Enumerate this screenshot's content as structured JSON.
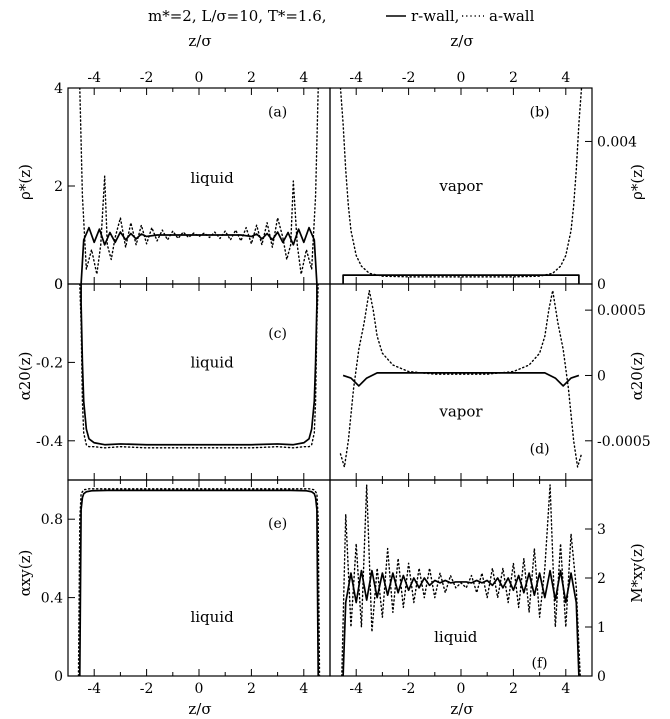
{
  "figure": {
    "header": {
      "params": "m*=2,  L/σ=10,  T*=1.6,",
      "solid_legend": "r-wall,",
      "dotted_legend": "a-wall"
    },
    "axes": {
      "top_xlabel": "z/σ",
      "bottom_xlabel": "z/σ",
      "ylabel_rho": "ρ*(z)",
      "ylabel_alpha20": "α20(z)",
      "ylabel_alphaxy": "αxy(z)",
      "ylabel_Mxy": "M*xy(z)"
    }
  },
  "chart_data": [
    {
      "type": "line",
      "panel": "(a)",
      "region": "liquid",
      "xlim": [
        -5,
        5
      ],
      "ylim": [
        0,
        4
      ],
      "xticks": [
        "-4",
        "-2",
        "0",
        "2",
        "4"
      ],
      "yticks": [
        "0",
        "2",
        "4"
      ],
      "series": [
        {
          "name": "r-wall",
          "style": "solid",
          "x": [
            -4.5,
            -4.4,
            -4.2,
            -4.0,
            -3.8,
            -3.6,
            -3.4,
            -3.2,
            -3.0,
            -2.8,
            -2.6,
            -2.4,
            -2.2,
            -2.0,
            -1.6,
            -1.2,
            -0.8,
            -0.4,
            0.0,
            0.4,
            0.8,
            1.2,
            1.6,
            2.0,
            2.2,
            2.4,
            2.6,
            2.8,
            3.0,
            3.2,
            3.4,
            3.6,
            3.8,
            4.0,
            4.2,
            4.4,
            4.5
          ],
          "y": [
            0.0,
            0.9,
            1.15,
            0.85,
            1.12,
            0.8,
            1.05,
            0.85,
            1.06,
            0.9,
            1.03,
            0.92,
            1.02,
            0.97,
            1.0,
            1.0,
            1.0,
            1.0,
            1.0,
            1.0,
            1.0,
            1.0,
            1.0,
            0.97,
            1.02,
            0.92,
            1.03,
            0.9,
            1.06,
            0.85,
            1.05,
            0.8,
            1.12,
            0.85,
            1.15,
            0.9,
            0.0
          ]
        },
        {
          "name": "a-wall",
          "style": "dotted",
          "x": [
            -4.55,
            -4.45,
            -4.3,
            -4.1,
            -3.9,
            -3.75,
            -3.6,
            -3.5,
            -3.35,
            -3.2,
            -3.0,
            -2.8,
            -2.6,
            -2.4,
            -2.2,
            -2.0,
            -1.8,
            -1.6,
            -1.4,
            -1.2,
            -1.0,
            -0.8,
            -0.6,
            -0.4,
            -0.2,
            0.0,
            0.2,
            0.4,
            0.6,
            0.8,
            1.0,
            1.2,
            1.4,
            1.6,
            1.8,
            2.0,
            2.2,
            2.4,
            2.6,
            2.8,
            3.0,
            3.2,
            3.35,
            3.5,
            3.6,
            3.75,
            3.9,
            4.1,
            4.3,
            4.45,
            4.55
          ],
          "y": [
            4.0,
            1.8,
            0.3,
            0.7,
            0.2,
            0.8,
            2.2,
            0.8,
            0.5,
            0.95,
            1.35,
            0.75,
            1.25,
            0.8,
            1.2,
            0.82,
            1.15,
            0.88,
            1.1,
            0.9,
            1.08,
            0.93,
            1.06,
            0.95,
            1.04,
            0.97,
            1.04,
            0.95,
            1.06,
            0.93,
            1.08,
            0.9,
            1.1,
            0.88,
            1.15,
            0.82,
            1.2,
            0.8,
            1.25,
            0.75,
            1.35,
            0.95,
            0.5,
            0.8,
            2.1,
            0.8,
            0.2,
            0.7,
            0.3,
            1.8,
            4.0
          ]
        }
      ]
    },
    {
      "type": "line",
      "panel": "(b)",
      "region": "vapor",
      "xlim": [
        -5,
        5
      ],
      "ylim": [
        0,
        0.0055
      ],
      "xticks": [
        "-4",
        "-2",
        "0",
        "2",
        "4"
      ],
      "yticks": [
        "0",
        "0.004"
      ],
      "series": [
        {
          "name": "r-wall",
          "style": "solid",
          "x": [
            -4.5,
            -4.5,
            4.5,
            4.5
          ],
          "y": [
            0.0,
            0.00025,
            0.00025,
            0.0
          ]
        },
        {
          "name": "a-wall",
          "style": "dotted",
          "x": [
            -4.6,
            -4.5,
            -4.4,
            -4.3,
            -4.2,
            -4.0,
            -3.8,
            -3.5,
            -3.0,
            -2.0,
            0.0,
            2.0,
            3.0,
            3.5,
            3.8,
            4.0,
            4.2,
            4.3,
            4.4,
            4.5,
            4.6
          ],
          "y": [
            0.0055,
            0.0045,
            0.0032,
            0.0022,
            0.0015,
            0.0008,
            0.0005,
            0.0003,
            0.00022,
            0.0002,
            0.0002,
            0.0002,
            0.00022,
            0.0003,
            0.0005,
            0.0008,
            0.0015,
            0.0022,
            0.0032,
            0.0045,
            0.0055
          ]
        }
      ]
    },
    {
      "type": "line",
      "panel": "(c)",
      "region": "liquid",
      "xlim": [
        -5,
        5
      ],
      "ylim": [
        -0.5,
        0.0
      ],
      "yticks": [
        "0",
        "-0.2",
        "-0.4"
      ],
      "series": [
        {
          "name": "r-wall",
          "style": "solid",
          "x": [
            -4.5,
            -4.5,
            -4.45,
            -4.4,
            -4.3,
            -4.2,
            -4.0,
            -3.6,
            -3.0,
            -2.0,
            0.0,
            2.0,
            3.0,
            3.6,
            4.0,
            4.2,
            4.3,
            4.4,
            4.45,
            4.5,
            4.5
          ],
          "y": [
            0.0,
            -0.05,
            -0.2,
            -0.3,
            -0.37,
            -0.395,
            -0.405,
            -0.41,
            -0.408,
            -0.41,
            -0.41,
            -0.41,
            -0.408,
            -0.41,
            -0.405,
            -0.395,
            -0.37,
            -0.3,
            -0.2,
            -0.05,
            0.0
          ]
        },
        {
          "name": "a-wall",
          "style": "dotted",
          "x": [
            -4.55,
            -4.5,
            -4.45,
            -4.4,
            -4.3,
            -4.2,
            -4.0,
            -3.6,
            -3.0,
            -2.0,
            0.0,
            2.0,
            3.0,
            3.6,
            4.0,
            4.2,
            4.3,
            4.4,
            4.45,
            4.5,
            4.55
          ],
          "y": [
            0.0,
            -0.1,
            -0.3,
            -0.38,
            -0.41,
            -0.415,
            -0.415,
            -0.418,
            -0.415,
            -0.418,
            -0.418,
            -0.418,
            -0.415,
            -0.418,
            -0.415,
            -0.415,
            -0.41,
            -0.38,
            -0.3,
            -0.1,
            0.0
          ]
        }
      ]
    },
    {
      "type": "line",
      "panel": "(d)",
      "region": "vapor",
      "xlim": [
        -5,
        5
      ],
      "ylim": [
        -0.0008,
        0.0007
      ],
      "yticks": [
        "0.0005",
        "0",
        "-0.0005"
      ],
      "series": [
        {
          "name": "r-wall",
          "style": "solid",
          "x": [
            -4.5,
            -4.2,
            -3.9,
            -3.6,
            -3.2,
            -2.5,
            -1.0,
            0.0,
            1.0,
            2.5,
            3.2,
            3.6,
            3.9,
            4.2,
            4.5
          ],
          "y": [
            0.0,
            -2e-05,
            -8e-05,
            -2e-05,
            2e-05,
            2e-05,
            2e-05,
            2e-05,
            2e-05,
            2e-05,
            2e-05,
            -2e-05,
            -8e-05,
            -2e-05,
            0.0
          ]
        },
        {
          "name": "a-wall",
          "style": "dotted",
          "x": [
            -4.6,
            -4.45,
            -4.3,
            -4.1,
            -3.9,
            -3.7,
            -3.5,
            -3.35,
            -3.2,
            -3.0,
            -2.6,
            -2.0,
            -1.0,
            0.0,
            1.0,
            2.0,
            2.6,
            3.0,
            3.2,
            3.35,
            3.5,
            3.7,
            3.9,
            4.1,
            4.3,
            4.45,
            4.6
          ],
          "y": [
            -0.0006,
            -0.0007,
            -0.0005,
            -0.0001,
            0.0002,
            0.0004,
            0.00065,
            0.0005,
            0.0003,
            0.00017,
            8e-05,
            3e-05,
            1e-05,
            1e-05,
            1e-05,
            3e-05,
            8e-05,
            0.00017,
            0.0003,
            0.0005,
            0.00065,
            0.0004,
            0.0002,
            -0.0001,
            -0.0005,
            -0.0007,
            -0.0006
          ]
        }
      ]
    },
    {
      "type": "line",
      "panel": "(e)",
      "region": "liquid",
      "xlim": [
        -5,
        5
      ],
      "ylim": [
        0,
        1.0
      ],
      "xticks": [
        "-4",
        "-2",
        "0",
        "2",
        "4"
      ],
      "yticks": [
        "0",
        "0.4",
        "0.8"
      ],
      "series": [
        {
          "name": "r-wall",
          "style": "solid",
          "x": [
            -4.55,
            -4.5,
            -4.45,
            -4.4,
            -4.3,
            -4.1,
            -3.5,
            0.0,
            3.5,
            4.1,
            4.3,
            4.4,
            4.45,
            4.5,
            4.55
          ],
          "y": [
            0.0,
            0.85,
            0.91,
            0.93,
            0.94,
            0.945,
            0.947,
            0.947,
            0.947,
            0.945,
            0.94,
            0.93,
            0.91,
            0.85,
            0.0
          ]
        },
        {
          "name": "a-wall",
          "style": "dotted",
          "x": [
            -4.6,
            -4.55,
            -4.5,
            -4.4,
            -4.2,
            -3.5,
            0.0,
            3.5,
            4.2,
            4.4,
            4.5,
            4.55,
            4.6
          ],
          "y": [
            0.0,
            0.8,
            0.93,
            0.95,
            0.955,
            0.955,
            0.955,
            0.955,
            0.955,
            0.95,
            0.93,
            0.8,
            0.0
          ]
        }
      ]
    },
    {
      "type": "line",
      "panel": "(f)",
      "region": "liquid",
      "xlim": [
        -5,
        5
      ],
      "ylim": [
        0,
        4
      ],
      "xticks": [
        "-4",
        "-2",
        "0",
        "2",
        "4"
      ],
      "yticks": [
        "0",
        "1",
        "2",
        "3"
      ],
      "series": [
        {
          "name": "r-wall",
          "style": "solid",
          "x": [
            -4.5,
            -4.4,
            -4.2,
            -4.0,
            -3.8,
            -3.6,
            -3.4,
            -3.2,
            -3.0,
            -2.8,
            -2.6,
            -2.4,
            -2.2,
            -2.0,
            -1.8,
            -1.6,
            -1.4,
            -1.2,
            -1.0,
            -0.8,
            -0.6,
            -0.4,
            -0.2,
            0.0,
            0.2,
            0.4,
            0.6,
            0.8,
            1.0,
            1.2,
            1.4,
            1.6,
            1.8,
            2.0,
            2.2,
            2.4,
            2.6,
            2.8,
            3.0,
            3.2,
            3.4,
            3.6,
            3.8,
            4.0,
            4.2,
            4.4,
            4.5
          ],
          "y": [
            0.0,
            1.5,
            2.1,
            1.5,
            2.15,
            1.55,
            2.15,
            1.6,
            2.1,
            1.65,
            2.1,
            1.7,
            2.05,
            1.75,
            2.0,
            1.8,
            2.0,
            1.85,
            1.95,
            1.9,
            1.95,
            1.9,
            1.92,
            1.92,
            1.92,
            1.9,
            1.95,
            1.9,
            1.95,
            1.85,
            2.0,
            1.8,
            2.0,
            1.75,
            2.05,
            1.7,
            2.1,
            1.65,
            2.1,
            1.6,
            2.15,
            1.55,
            2.15,
            1.5,
            2.1,
            1.5,
            0.0
          ]
        },
        {
          "name": "a-wall",
          "style": "dotted",
          "x": [
            -4.55,
            -4.4,
            -4.2,
            -4.0,
            -3.8,
            -3.6,
            -3.4,
            -3.2,
            -3.0,
            -2.8,
            -2.6,
            -2.4,
            -2.2,
            -2.0,
            -1.8,
            -1.6,
            -1.4,
            -1.2,
            -1.0,
            -0.8,
            -0.6,
            -0.4,
            -0.2,
            0.0,
            0.2,
            0.4,
            0.6,
            0.8,
            1.0,
            1.2,
            1.4,
            1.6,
            1.8,
            2.0,
            2.2,
            2.4,
            2.6,
            2.8,
            3.0,
            3.2,
            3.4,
            3.6,
            3.8,
            4.0,
            4.2,
            4.4,
            4.55
          ],
          "y": [
            0.0,
            3.3,
            1.0,
            2.7,
            1.0,
            3.9,
            0.9,
            2.2,
            1.2,
            2.6,
            1.3,
            2.4,
            1.4,
            2.3,
            1.5,
            2.2,
            1.6,
            2.2,
            1.6,
            2.1,
            1.7,
            2.05,
            1.8,
            1.9,
            1.8,
            2.05,
            1.7,
            2.1,
            1.6,
            2.2,
            1.6,
            2.2,
            1.5,
            2.3,
            1.4,
            2.4,
            1.3,
            2.6,
            1.2,
            2.2,
            3.9,
            1.0,
            2.7,
            1.0,
            2.9,
            1.8,
            0.0
          ]
        }
      ]
    }
  ]
}
